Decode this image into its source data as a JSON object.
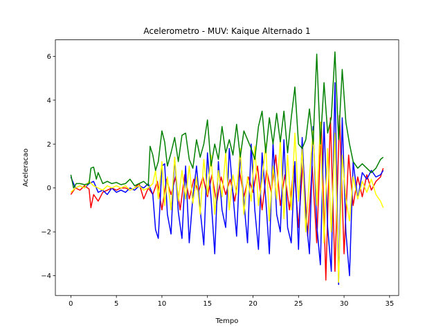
{
  "chart_data": {
    "type": "line",
    "title": "Acelerometro - MUV: Kaique Alternado 1",
    "xlabel": "Tempo",
    "ylabel": "Aceleracao",
    "xlim": [
      -1.7,
      36.0
    ],
    "ylim": [
      -4.9,
      6.75
    ],
    "xticks": [
      0,
      5,
      10,
      15,
      20,
      25,
      30,
      35
    ],
    "yticks": [
      -4,
      -2,
      0,
      2,
      4,
      6
    ],
    "grid": false,
    "legend": "none",
    "series": [
      {
        "color": "#ff0000",
        "x": [
          0,
          0.5,
          1,
          1.5,
          2,
          2.2,
          2.5,
          3,
          3.5,
          4,
          4.5,
          5,
          5.5,
          6,
          6.5,
          7,
          7.5,
          8,
          8.5,
          9,
          9.5,
          10,
          10.5,
          11,
          11.5,
          12,
          12.5,
          13,
          13.5,
          14,
          14.5,
          15,
          15.5,
          16,
          16.5,
          17,
          17.5,
          18,
          18.5,
          19,
          19.5,
          20,
          20.5,
          21,
          21.5,
          22,
          22.5,
          23,
          23.5,
          24,
          24.5,
          25,
          25.5,
          26,
          26.5,
          27,
          27.5,
          28,
          28.5,
          29,
          29.5,
          30,
          30.5,
          31,
          31.5,
          32,
          32.5,
          33,
          33.5,
          34,
          34.3
        ],
        "y": [
          -0.3,
          0.0,
          -0.1,
          0.1,
          -0.05,
          -0.9,
          -0.3,
          -0.6,
          -0.2,
          -0.1,
          0.0,
          -0.1,
          0.0,
          0.0,
          -0.1,
          0.0,
          0.2,
          -0.5,
          0.0,
          -0.3,
          0.3,
          -1.0,
          0.4,
          -0.3,
          0.5,
          -1.0,
          0.6,
          -0.5,
          0.4,
          -0.2,
          0.5,
          -0.4,
          0.6,
          -0.7,
          0.5,
          -0.3,
          0.4,
          -0.6,
          0.8,
          -0.4,
          0.5,
          -0.2,
          1.0,
          -1.0,
          0.8,
          -0.2,
          1.5,
          -0.8,
          0.6,
          -1.0,
          1.0,
          -1.8,
          1.3,
          -2.2,
          1.0,
          -2.5,
          3.0,
          -4.2,
          3.2,
          -3.8,
          3.3,
          -3.0,
          1.5,
          -0.8,
          0.5,
          -0.4,
          0.6,
          -0.1,
          0.3,
          0.5,
          0.9
        ]
      },
      {
        "color": "#0000ff",
        "x": [
          0,
          0.5,
          1,
          1.5,
          2,
          2.5,
          3,
          3.5,
          4,
          4.5,
          5,
          5.5,
          6,
          6.5,
          7,
          7.5,
          8,
          8.5,
          9,
          9.3,
          9.6,
          10,
          10.3,
          10.6,
          11,
          11.4,
          11.8,
          12.2,
          12.6,
          13,
          13.4,
          13.8,
          14.2,
          14.6,
          15,
          15.4,
          15.8,
          16.2,
          16.6,
          17,
          17.4,
          17.8,
          18.2,
          18.6,
          19,
          19.4,
          19.8,
          20.2,
          20.6,
          21,
          21.4,
          21.8,
          22.2,
          22.6,
          23,
          23.4,
          23.8,
          24.2,
          24.6,
          25,
          25.4,
          25.8,
          26.2,
          26.6,
          27,
          27.4,
          27.8,
          28.2,
          28.6,
          29,
          29.4,
          29.8,
          30.2,
          30.6,
          31,
          31.5,
          32,
          32.5,
          33,
          33.5,
          34,
          34.3
        ],
        "y": [
          0.5,
          0.0,
          0.1,
          0.0,
          0.2,
          0.3,
          -0.2,
          -0.1,
          -0.3,
          0.0,
          -0.2,
          -0.1,
          -0.2,
          0.0,
          -0.1,
          0.1,
          0.0,
          0.2,
          -0.3,
          -1.9,
          -2.3,
          1.0,
          1.1,
          -1.2,
          -2.1,
          1.4,
          -1.1,
          -2.3,
          1.0,
          -2.5,
          -0.4,
          1.0,
          -1.0,
          -2.6,
          1.6,
          -0.5,
          -3.0,
          1.2,
          -1.0,
          -1.8,
          1.8,
          -0.3,
          -2.2,
          1.5,
          -0.6,
          -2.5,
          2.0,
          -1.0,
          -2.8,
          1.6,
          -0.5,
          -3.0,
          2.1,
          -1.2,
          -2.0,
          2.2,
          -1.8,
          -2.5,
          1.2,
          -2.8,
          2.3,
          -1.2,
          -3.0,
          2.8,
          -1.7,
          -3.5,
          3.0,
          -1.8,
          -3.8,
          4.8,
          -4.4,
          3.2,
          -2.0,
          -4.0,
          1.2,
          -0.5,
          0.7,
          0.4,
          0.8,
          0.5,
          0.6,
          0.8
        ]
      },
      {
        "color": "#ffff00",
        "x": [
          0,
          0.5,
          1,
          1.5,
          2,
          2.5,
          3,
          3.5,
          4,
          4.5,
          5,
          5.5,
          6,
          6.5,
          7,
          7.5,
          8,
          8.5,
          9,
          9.3,
          9.6,
          10,
          10.3,
          10.6,
          11,
          11.4,
          11.8,
          12.2,
          12.6,
          13,
          13.4,
          13.8,
          14.2,
          14.6,
          15,
          15.4,
          15.8,
          16.2,
          16.6,
          17,
          17.4,
          17.8,
          18.2,
          18.6,
          19,
          19.4,
          19.8,
          20.2,
          20.6,
          21,
          21.4,
          21.8,
          22.2,
          22.6,
          23,
          23.4,
          23.8,
          24.2,
          24.6,
          25,
          25.4,
          25.8,
          26.2,
          26.6,
          27,
          27.4,
          27.8,
          28.2,
          28.6,
          29,
          29.4,
          29.8,
          30.2,
          30.6,
          31,
          31.5,
          32,
          32.5,
          33,
          33.5,
          34,
          34.3
        ],
        "y": [
          -0.2,
          0.0,
          0.1,
          0.0,
          0.3,
          0.1,
          0.0,
          -0.1,
          0.1,
          0.0,
          0.1,
          0.0,
          0.1,
          -0.1,
          0.0,
          0.1,
          -0.1,
          0.0,
          0.2,
          0.8,
          -0.5,
          1.2,
          -0.8,
          0.5,
          -1.0,
          1.4,
          -0.6,
          0.8,
          -0.5,
          1.0,
          -0.7,
          0.5,
          -1.2,
          1.3,
          -0.3,
          1.5,
          -1.2,
          0.8,
          -0.4,
          1.6,
          -1.0,
          0.6,
          -0.3,
          1.8,
          -1.2,
          0.5,
          -0.6,
          1.9,
          -0.8,
          0.4,
          2.0,
          -1.5,
          1.0,
          -0.5,
          2.2,
          -1.4,
          1.5,
          -1.0,
          2.5,
          -0.6,
          1.8,
          -2.0,
          0.5,
          2.6,
          -0.8,
          3.0,
          -2.5,
          1.8,
          -2.0,
          2.5,
          -4.3,
          1.5,
          -0.5,
          -1.5,
          0.5,
          -0.5,
          0.3,
          -0.2,
          0.4,
          -0.3,
          -0.6,
          -0.9
        ]
      },
      {
        "color": "#008000",
        "x": [
          0,
          0.3,
          0.6,
          1,
          1.5,
          2,
          2.2,
          2.5,
          2.8,
          3,
          3.5,
          4,
          4.5,
          5,
          5.5,
          6,
          6.5,
          7,
          7.5,
          8,
          8.5,
          8.7,
          9,
          9.3,
          9.6,
          10,
          10.3,
          10.6,
          11,
          11.4,
          11.8,
          12.2,
          12.6,
          13,
          13.4,
          13.8,
          14.2,
          14.6,
          15,
          15.4,
          15.8,
          16.2,
          16.6,
          17,
          17.4,
          17.8,
          18.2,
          18.6,
          19,
          19.4,
          19.8,
          20.2,
          20.6,
          21,
          21.4,
          21.8,
          22.2,
          22.6,
          23,
          23.4,
          23.8,
          24.2,
          24.6,
          25,
          25.4,
          25.8,
          26.2,
          26.6,
          27,
          27.4,
          27.8,
          28.2,
          28.6,
          29,
          29.4,
          29.8,
          30.2,
          30.6,
          31,
          31.5,
          32,
          32.5,
          33,
          33.5,
          34,
          34.3
        ],
        "y": [
          0.6,
          0.0,
          0.2,
          0.2,
          0.15,
          0.2,
          0.9,
          0.95,
          0.4,
          0.7,
          0.2,
          0.3,
          0.2,
          0.25,
          0.15,
          0.2,
          0.4,
          0.1,
          0.2,
          0.3,
          0.1,
          1.9,
          1.5,
          0.8,
          1.2,
          2.6,
          2.1,
          1.0,
          1.6,
          2.3,
          1.2,
          2.4,
          2.5,
          1.3,
          0.9,
          2.2,
          1.4,
          2.0,
          3.1,
          1.0,
          2.0,
          1.3,
          2.8,
          1.6,
          2.2,
          1.5,
          2.9,
          1.4,
          2.6,
          2.2,
          1.8,
          1.3,
          2.8,
          3.5,
          1.6,
          3.2,
          2.0,
          3.4,
          2.1,
          3.5,
          1.6,
          3.2,
          4.6,
          2.0,
          1.8,
          2.2,
          3.6,
          2.0,
          6.1,
          2.0,
          4.8,
          2.5,
          3.2,
          6.2,
          2.2,
          5.4,
          3.0,
          2.0,
          1.2,
          0.9,
          1.1,
          0.9,
          0.7,
          0.9,
          1.3,
          1.4
        ]
      }
    ]
  }
}
